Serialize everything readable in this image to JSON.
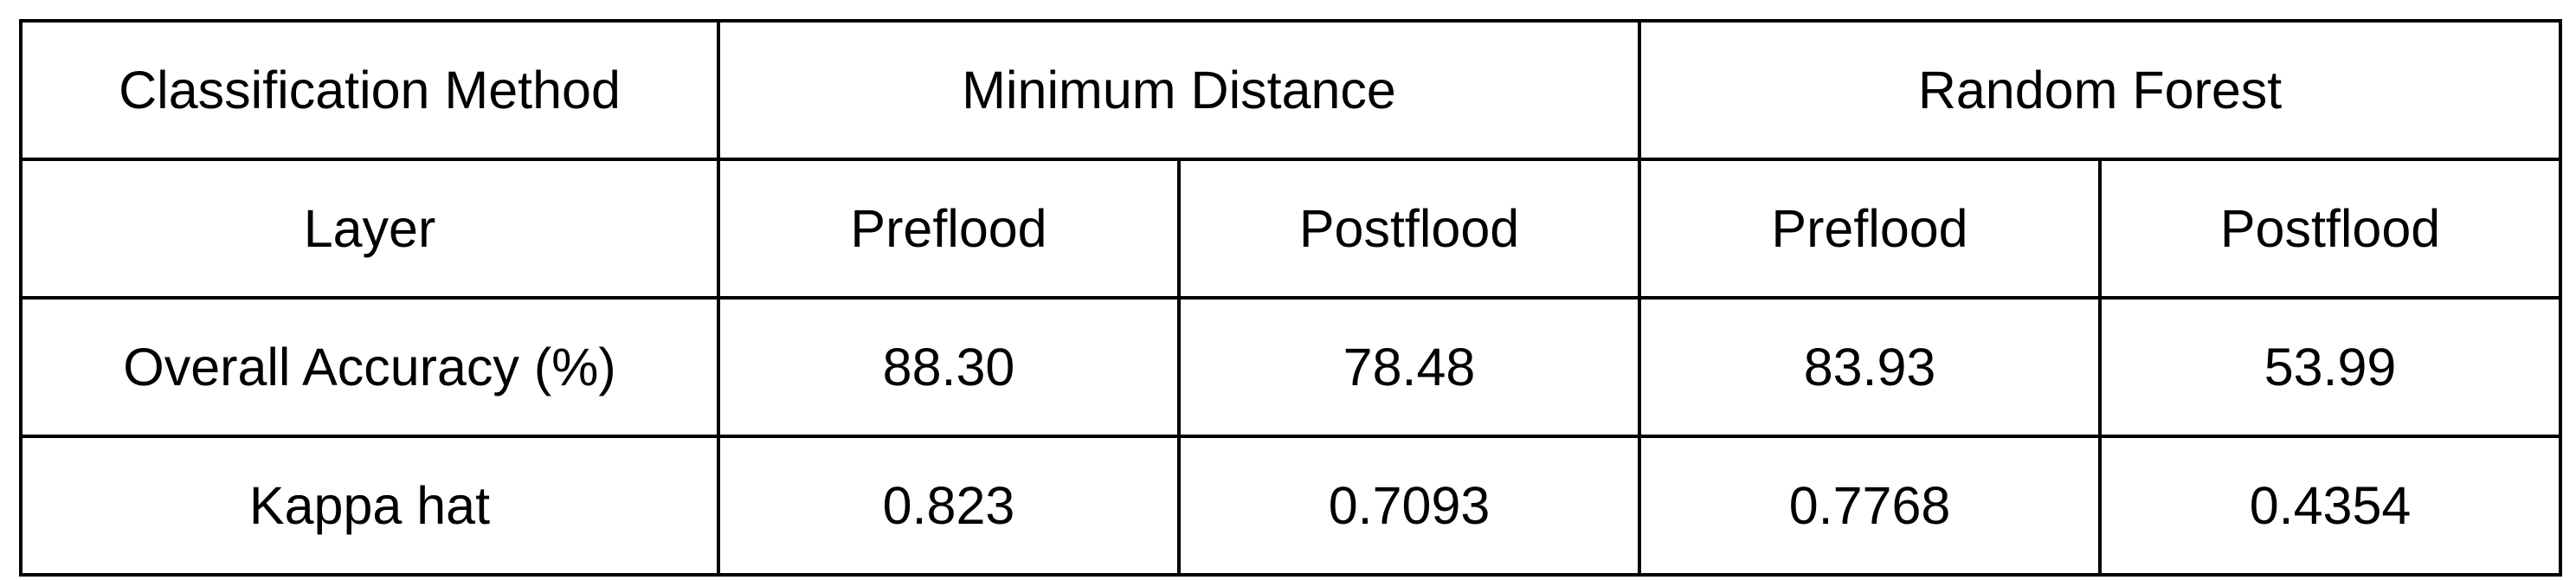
{
  "header": {
    "method_label": "Classification Method",
    "groups": [
      "Minimum Distance",
      "Random Forest"
    ]
  },
  "layer_row": {
    "label": "Layer",
    "columns": [
      "Preflood",
      "Postflood",
      "Preflood",
      "Postflood"
    ]
  },
  "rows": [
    {
      "label": "Overall Accuracy (%)",
      "values": [
        "88.30",
        "78.48",
        "83.93",
        "53.99"
      ]
    },
    {
      "label": "Kappa hat",
      "values": [
        "0.823",
        "0.7093",
        "0.7768",
        "0.4354"
      ]
    }
  ]
}
